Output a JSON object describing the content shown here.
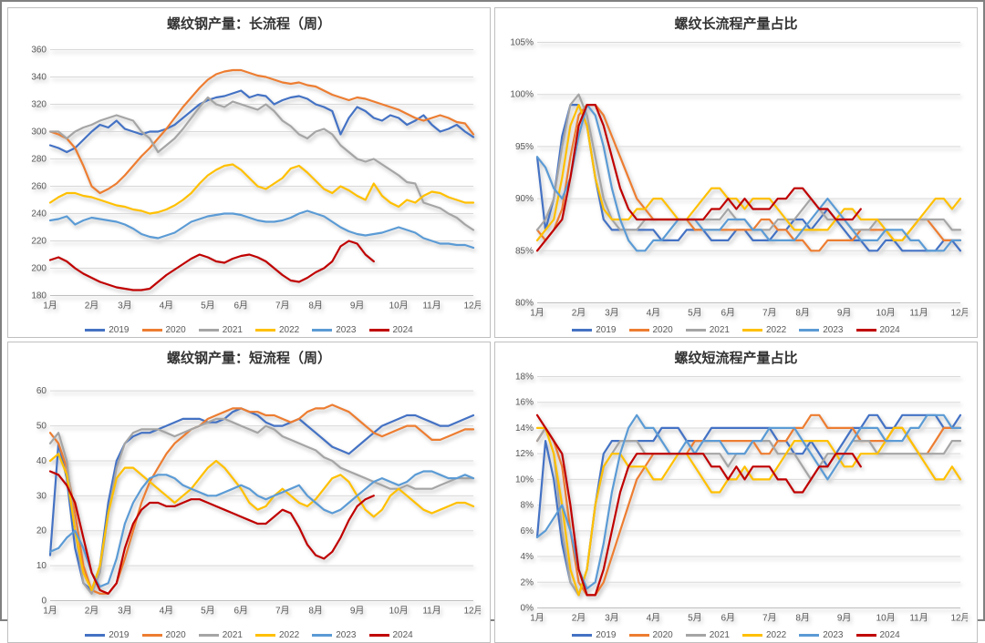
{
  "layout": {
    "rows": 2,
    "cols": 2,
    "background": "#ffffff",
    "outer_border_color": "#808080",
    "panel_border_color": "#bfbfbf",
    "grid_color": "#d9d9d9",
    "axis_text_color": "#595959",
    "axis_fontsize": 10,
    "title_fontsize": 15,
    "title_weight": "bold",
    "line_width": 2.2,
    "shadow": true
  },
  "series_colors": {
    "2019": "#4472c4",
    "2020": "#ed7d31",
    "2021": "#a5a5a5",
    "2022": "#ffc000",
    "2023": "#5b9bd5",
    "2024": "#c00000"
  },
  "legend_labels": [
    "2019",
    "2020",
    "2021",
    "2022",
    "2023",
    "2024"
  ],
  "x_categories": [
    "1月",
    "2月",
    "3月",
    "4月",
    "5月",
    "6月",
    "7月",
    "8月",
    "9月",
    "10月",
    "11月",
    "12月"
  ],
  "panels": [
    {
      "id": "long_flow_output",
      "title": "螺纹钢产量：长流程（周）",
      "type": "line",
      "ylim": [
        180,
        360
      ],
      "ytick_step": 20,
      "y_format": "int",
      "x_points": 52,
      "series": {
        "2019": [
          290,
          288,
          285,
          288,
          294,
          300,
          305,
          303,
          308,
          302,
          300,
          298,
          300,
          300,
          302,
          305,
          310,
          315,
          320,
          323,
          325,
          326,
          328,
          330,
          325,
          327,
          326,
          320,
          323,
          325,
          326,
          324,
          320,
          318,
          315,
          298,
          310,
          318,
          315,
          310,
          308,
          312,
          310,
          305,
          308,
          312,
          305,
          300,
          302,
          305,
          300,
          296
        ],
        "2020": [
          300,
          298,
          295,
          288,
          275,
          260,
          255,
          258,
          262,
          268,
          275,
          282,
          288,
          295,
          302,
          310,
          318,
          325,
          332,
          338,
          342,
          344,
          345,
          345,
          343,
          341,
          340,
          338,
          336,
          335,
          336,
          334,
          333,
          330,
          327,
          325,
          323,
          325,
          324,
          322,
          320,
          318,
          316,
          313,
          310,
          308,
          310,
          312,
          310,
          307,
          306,
          298
        ],
        "2021": [
          300,
          300,
          295,
          300,
          303,
          305,
          308,
          310,
          312,
          310,
          308,
          300,
          295,
          285,
          290,
          295,
          302,
          310,
          318,
          325,
          320,
          318,
          322,
          320,
          318,
          316,
          320,
          315,
          308,
          304,
          298,
          295,
          300,
          302,
          298,
          290,
          285,
          280,
          278,
          280,
          276,
          272,
          268,
          263,
          262,
          248,
          246,
          244,
          240,
          237,
          232,
          228
        ],
        "2022": [
          248,
          252,
          255,
          255,
          253,
          252,
          250,
          248,
          246,
          245,
          243,
          242,
          240,
          241,
          243,
          246,
          250,
          255,
          262,
          268,
          272,
          275,
          276,
          272,
          266,
          260,
          258,
          262,
          266,
          273,
          275,
          270,
          264,
          258,
          255,
          260,
          257,
          253,
          250,
          262,
          253,
          248,
          245,
          250,
          248,
          253,
          256,
          255,
          252,
          250,
          248,
          248
        ],
        "2023": [
          235,
          236,
          238,
          232,
          235,
          237,
          236,
          235,
          234,
          232,
          229,
          225,
          223,
          222,
          224,
          226,
          230,
          234,
          236,
          238,
          239,
          240,
          240,
          239,
          237,
          235,
          234,
          234,
          235,
          237,
          240,
          242,
          240,
          238,
          234,
          230,
          227,
          225,
          224,
          225,
          226,
          228,
          230,
          228,
          226,
          222,
          220,
          218,
          218,
          217,
          217,
          215
        ],
        "2024": [
          206,
          208,
          205,
          200,
          196,
          193,
          190,
          188,
          186,
          185,
          184,
          184,
          185,
          190,
          195,
          199,
          203,
          207,
          210,
          208,
          205,
          204,
          207,
          209,
          210,
          208,
          205,
          200,
          195,
          191,
          190,
          193,
          197,
          200,
          205,
          216,
          220,
          218,
          210,
          205
        ],
        "2024_len": 40
      }
    },
    {
      "id": "long_flow_ratio",
      "title": "螺纹长流程产量占比",
      "type": "line",
      "ylim": [
        80,
        105
      ],
      "ytick_step": 5,
      "y_format": "pct_int",
      "x_points": 52,
      "series": {
        "2019": [
          94,
          87,
          90,
          96,
          99,
          99,
          97,
          92,
          88,
          87,
          87,
          87,
          87,
          87,
          87,
          86,
          86,
          86,
          87,
          87,
          87,
          86,
          86,
          86,
          87,
          87,
          86,
          86,
          86,
          87,
          87,
          88,
          88,
          87,
          88,
          89,
          88,
          87,
          86,
          86,
          85,
          85,
          86,
          86,
          85,
          85,
          85,
          85,
          85,
          86,
          86,
          85
        ],
        "2020": [
          87,
          86,
          87,
          89,
          94,
          98,
          99,
          99,
          98,
          96,
          94,
          92,
          90,
          89,
          88,
          88,
          88,
          88,
          88,
          87,
          87,
          87,
          87,
          87,
          87,
          87,
          87,
          88,
          88,
          87,
          87,
          86,
          86,
          85,
          85,
          86,
          86,
          86,
          86,
          87,
          87,
          87,
          87,
          86,
          86,
          87,
          88,
          88,
          87,
          86,
          86,
          86
        ],
        "2021": [
          87,
          88,
          90,
          95,
          99,
          100,
          98,
          94,
          90,
          88,
          87,
          87,
          87,
          88,
          88,
          88,
          88,
          88,
          88,
          88,
          88,
          88,
          88,
          89,
          88,
          88,
          87,
          87,
          87,
          88,
          88,
          88,
          89,
          90,
          89,
          88,
          88,
          88,
          87,
          87,
          87,
          88,
          88,
          88,
          88,
          88,
          88,
          88,
          88,
          88,
          87,
          87
        ],
        "2022": [
          86,
          87,
          88,
          92,
          97,
          99,
          97,
          92,
          89,
          88,
          88,
          88,
          89,
          89,
          90,
          90,
          89,
          88,
          88,
          89,
          90,
          91,
          91,
          90,
          90,
          89,
          90,
          90,
          90,
          89,
          88,
          87,
          87,
          87,
          87,
          87,
          88,
          89,
          89,
          88,
          88,
          88,
          87,
          86,
          86,
          87,
          88,
          89,
          90,
          90,
          89,
          90
        ],
        "2023": [
          94,
          93,
          91,
          90,
          92,
          96,
          99,
          98,
          95,
          91,
          88,
          86,
          85,
          85,
          86,
          86,
          87,
          88,
          88,
          88,
          87,
          87,
          87,
          88,
          88,
          88,
          87,
          87,
          86,
          86,
          86,
          86,
          87,
          88,
          89,
          90,
          89,
          88,
          87,
          86,
          86,
          86,
          87,
          87,
          87,
          86,
          86,
          85,
          85,
          85,
          86,
          86
        ],
        "2024": [
          85,
          86,
          87,
          88,
          92,
          97,
          99,
          99,
          97,
          94,
          91,
          89,
          88,
          88,
          88,
          88,
          88,
          88,
          88,
          88,
          88,
          89,
          89,
          90,
          89,
          90,
          89,
          89,
          89,
          90,
          90,
          91,
          91,
          90,
          89,
          89,
          88,
          88,
          88,
          89
        ],
        "2024_len": 40
      }
    },
    {
      "id": "short_flow_output",
      "title": "螺纹钢产量：短流程（周）",
      "type": "line",
      "ylim": [
        0,
        62
      ],
      "ytick_step": 10,
      "y_format": "int",
      "x_points": 52,
      "series": {
        "2019": [
          13,
          45,
          35,
          15,
          5,
          3,
          10,
          28,
          40,
          45,
          47,
          48,
          48,
          49,
          50,
          51,
          52,
          52,
          52,
          51,
          51,
          52,
          54,
          55,
          54,
          53,
          51,
          50,
          50,
          51,
          52,
          50,
          48,
          46,
          44,
          43,
          42,
          44,
          46,
          48,
          50,
          51,
          52,
          53,
          53,
          52,
          51,
          50,
          50,
          51,
          52,
          53
        ],
        "2020": [
          48,
          45,
          38,
          25,
          10,
          3,
          2,
          2,
          5,
          12,
          20,
          28,
          34,
          38,
          42,
          45,
          47,
          49,
          50,
          52,
          53,
          54,
          55,
          55,
          54,
          54,
          53,
          53,
          52,
          51,
          52,
          54,
          55,
          55,
          56,
          55,
          54,
          52,
          50,
          48,
          47,
          48,
          49,
          50,
          50,
          48,
          46,
          46,
          47,
          48,
          49,
          49
        ],
        "2021": [
          45,
          48,
          40,
          20,
          5,
          2,
          8,
          25,
          38,
          45,
          48,
          49,
          49,
          49,
          48,
          47,
          48,
          49,
          50,
          51,
          52,
          52,
          51,
          50,
          49,
          48,
          50,
          49,
          47,
          46,
          45,
          44,
          43,
          41,
          40,
          38,
          37,
          36,
          35,
          34,
          33,
          32,
          32,
          33,
          32,
          32,
          32,
          33,
          34,
          35,
          35,
          35
        ],
        "2022": [
          40,
          42,
          36,
          20,
          8,
          3,
          10,
          25,
          35,
          38,
          38,
          36,
          34,
          32,
          30,
          28,
          30,
          32,
          35,
          38,
          40,
          38,
          35,
          32,
          28,
          26,
          27,
          30,
          32,
          30,
          28,
          27,
          29,
          32,
          35,
          36,
          34,
          30,
          26,
          24,
          26,
          30,
          32,
          30,
          28,
          26,
          25,
          26,
          27,
          28,
          28,
          27
        ],
        "2023": [
          14,
          15,
          18,
          20,
          15,
          8,
          4,
          5,
          12,
          22,
          28,
          32,
          35,
          36,
          36,
          35,
          33,
          32,
          31,
          30,
          30,
          31,
          32,
          33,
          32,
          30,
          29,
          30,
          31,
          32,
          33,
          30,
          28,
          26,
          25,
          26,
          28,
          30,
          32,
          34,
          35,
          34,
          33,
          34,
          36,
          37,
          37,
          36,
          35,
          35,
          36,
          35
        ],
        "2024": [
          37,
          36,
          33,
          28,
          18,
          8,
          3,
          2,
          5,
          15,
          22,
          26,
          28,
          28,
          27,
          27,
          28,
          29,
          29,
          28,
          27,
          26,
          25,
          24,
          23,
          22,
          22,
          24,
          26,
          25,
          21,
          16,
          13,
          12,
          14,
          18,
          23,
          27,
          29,
          30
        ],
        "2024_len": 40
      }
    },
    {
      "id": "short_flow_ratio",
      "title": "螺纹短流程产量占比",
      "type": "line",
      "ylim": [
        0,
        18
      ],
      "ytick_step": 2,
      "y_format": "pct_int",
      "x_points": 52,
      "series": {
        "2019": [
          5.5,
          13,
          10,
          5,
          2,
          1,
          3,
          8,
          12,
          13,
          13,
          13,
          13,
          13,
          13,
          14,
          14,
          14,
          13,
          13,
          13,
          14,
          14,
          14,
          14,
          14,
          14,
          14,
          14,
          13,
          13,
          12,
          12,
          13,
          12,
          11,
          12,
          13,
          14,
          14,
          15,
          15,
          14,
          14,
          15,
          15,
          15,
          15,
          15,
          14,
          14,
          15
        ],
        "2020": [
          13,
          14,
          13,
          11,
          6,
          2,
          1,
          1,
          2,
          4,
          6,
          8,
          10,
          11,
          12,
          12,
          12,
          12,
          12,
          13,
          13,
          13,
          13,
          13,
          13,
          13,
          13,
          12,
          12,
          13,
          13,
          14,
          14,
          15,
          15,
          14,
          14,
          14,
          14,
          13,
          13,
          13,
          13,
          14,
          14,
          13,
          12,
          12,
          13,
          14,
          14,
          14
        ],
        "2021": [
          13,
          14,
          12,
          6,
          2,
          1,
          3,
          8,
          11,
          12,
          13,
          13,
          13,
          12,
          12,
          12,
          12,
          12,
          12,
          12,
          12,
          12,
          12,
          11,
          12,
          12,
          13,
          13,
          13,
          12,
          12,
          12,
          11,
          10,
          11,
          12,
          12,
          12,
          13,
          13,
          13,
          12,
          12,
          12,
          12,
          12,
          12,
          12,
          12,
          12,
          13,
          13
        ],
        "2022": [
          14,
          14,
          12,
          8,
          3,
          1,
          3,
          8,
          11,
          12,
          12,
          11,
          11,
          11,
          10,
          10,
          11,
          12,
          12,
          11,
          10,
          9,
          9,
          10,
          10,
          11,
          10,
          10,
          10,
          11,
          12,
          13,
          13,
          13,
          13,
          13,
          12,
          11,
          11,
          12,
          12,
          12,
          13,
          14,
          14,
          13,
          12,
          11,
          10,
          10,
          11,
          10
        ],
        "2023": [
          5.5,
          6,
          7,
          8,
          6,
          3,
          1.5,
          2,
          5,
          9,
          12,
          14,
          15,
          14,
          14,
          13,
          12,
          12,
          13,
          12,
          13,
          13,
          13,
          12,
          12,
          12,
          13,
          13,
          14,
          14,
          14,
          14,
          13,
          12,
          11,
          10,
          11,
          12,
          13,
          14,
          14,
          14,
          13,
          13,
          13,
          14,
          14,
          15,
          15,
          15,
          14,
          14
        ],
        "2024": [
          15,
          14,
          13,
          12,
          8,
          3,
          1,
          1,
          3,
          6,
          9,
          11,
          12,
          12,
          12,
          12,
          12,
          12,
          12,
          12,
          12,
          11,
          11,
          10,
          11,
          10,
          11,
          11,
          11,
          10,
          10,
          9,
          9,
          10,
          11,
          11,
          12,
          12,
          12,
          11
        ],
        "2024_len": 40
      }
    }
  ]
}
